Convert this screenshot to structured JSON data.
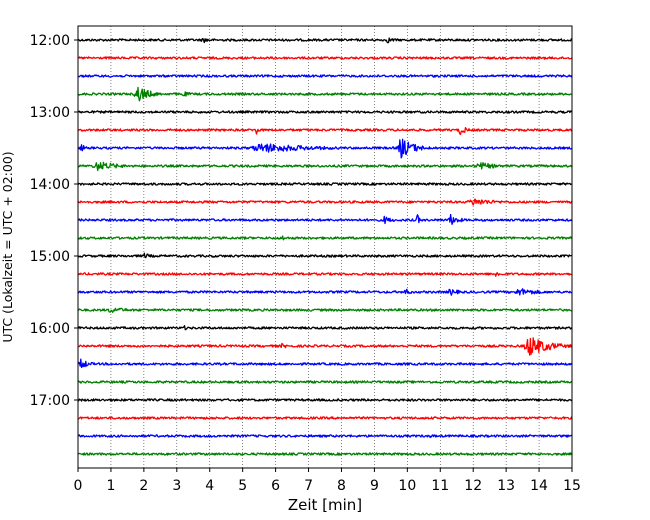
{
  "chart_data": {
    "type": "line",
    "title": "",
    "xlabel": "Zeit  [min]",
    "ylabel": "UTC (Lokalzeit = UTC + 02:00)",
    "xlim": [
      0,
      15
    ],
    "x_ticks": [
      "0",
      "1",
      "2",
      "3",
      "4",
      "5",
      "6",
      "7",
      "8",
      "9",
      "10",
      "11",
      "12",
      "13",
      "14",
      "15"
    ],
    "y_ticks": [
      "12:00",
      "13:00",
      "14:00",
      "15:00",
      "16:00",
      "17:00"
    ],
    "grid": "vertical-dotted",
    "colors": [
      "#000000",
      "#ff0000",
      "#0000ff",
      "#008000"
    ],
    "traces": [
      {
        "start": "12:00",
        "color": "#000000",
        "events": [
          {
            "t": 3.8,
            "amp": 3,
            "dur": 0.6
          },
          {
            "t": 9.4,
            "amp": 3,
            "dur": 0.6
          }
        ]
      },
      {
        "start": "12:15",
        "color": "#ff0000",
        "events": []
      },
      {
        "start": "12:30",
        "color": "#0000ff",
        "events": []
      },
      {
        "start": "12:45",
        "color": "#008000",
        "events": [
          {
            "t": 1.8,
            "amp": 9,
            "dur": 0.8
          },
          {
            "t": 3.2,
            "amp": 3,
            "dur": 0.5
          }
        ]
      },
      {
        "start": "13:00",
        "color": "#000000",
        "events": []
      },
      {
        "start": "13:15",
        "color": "#ff0000",
        "events": [
          {
            "t": 5.4,
            "amp": 6,
            "dur": 0.2
          },
          {
            "t": 11.6,
            "amp": 6,
            "dur": 0.4
          }
        ]
      },
      {
        "start": "13:30",
        "color": "#0000ff",
        "events": [
          {
            "t": 0.1,
            "amp": 4,
            "dur": 0.3
          },
          {
            "t": 5.6,
            "amp": 5,
            "dur": 3.5
          },
          {
            "t": 9.8,
            "amp": 11,
            "dur": 0.9
          }
        ]
      },
      {
        "start": "13:45",
        "color": "#008000",
        "events": [
          {
            "t": 0.6,
            "amp": 5,
            "dur": 1.4
          },
          {
            "t": 12.2,
            "amp": 4,
            "dur": 1.2
          }
        ]
      },
      {
        "start": "14:00",
        "color": "#000000",
        "events": []
      },
      {
        "start": "14:15",
        "color": "#ff0000",
        "events": [
          {
            "t": 12.0,
            "amp": 4,
            "dur": 1.6
          }
        ]
      },
      {
        "start": "14:30",
        "color": "#0000ff",
        "events": [
          {
            "t": 9.3,
            "amp": 4,
            "dur": 0.6
          },
          {
            "t": 10.3,
            "amp": 6,
            "dur": 0.2
          },
          {
            "t": 11.3,
            "amp": 6,
            "dur": 0.6
          }
        ]
      },
      {
        "start": "14:45",
        "color": "#008000",
        "events": [
          {
            "t": 6.2,
            "amp": 3,
            "dur": 0.4
          }
        ]
      },
      {
        "start": "15:00",
        "color": "#000000",
        "events": [
          {
            "t": 2.0,
            "amp": 3,
            "dur": 0.6
          }
        ]
      },
      {
        "start": "15:15",
        "color": "#ff0000",
        "events": [
          {
            "t": 12.7,
            "amp": 4,
            "dur": 0.3
          }
        ]
      },
      {
        "start": "15:30",
        "color": "#0000ff",
        "events": [
          {
            "t": 9.9,
            "amp": 4,
            "dur": 0.5
          },
          {
            "t": 11.3,
            "amp": 4,
            "dur": 0.6
          },
          {
            "t": 13.4,
            "amp": 4,
            "dur": 1.4
          }
        ]
      },
      {
        "start": "15:45",
        "color": "#008000",
        "events": [
          {
            "t": 1.0,
            "amp": 3,
            "dur": 1.4
          }
        ]
      },
      {
        "start": "16:00",
        "color": "#000000",
        "events": [
          {
            "t": 3.2,
            "amp": 3,
            "dur": 0.3
          }
        ]
      },
      {
        "start": "16:15",
        "color": "#ff0000",
        "events": [
          {
            "t": 6.2,
            "amp": 3,
            "dur": 0.4
          },
          {
            "t": 13.7,
            "amp": 11,
            "dur": 1.3
          }
        ]
      },
      {
        "start": "16:30",
        "color": "#0000ff",
        "events": [
          {
            "t": 0.0,
            "amp": 7,
            "dur": 0.6
          }
        ]
      },
      {
        "start": "16:45",
        "color": "#008000",
        "events": []
      },
      {
        "start": "17:00",
        "color": "#000000",
        "events": []
      },
      {
        "start": "17:15",
        "color": "#ff0000",
        "events": []
      },
      {
        "start": "17:30",
        "color": "#0000ff",
        "events": [
          {
            "t": 10.7,
            "amp": 2,
            "dur": 0.4
          }
        ]
      },
      {
        "start": "17:45",
        "color": "#008000",
        "events": []
      }
    ]
  }
}
